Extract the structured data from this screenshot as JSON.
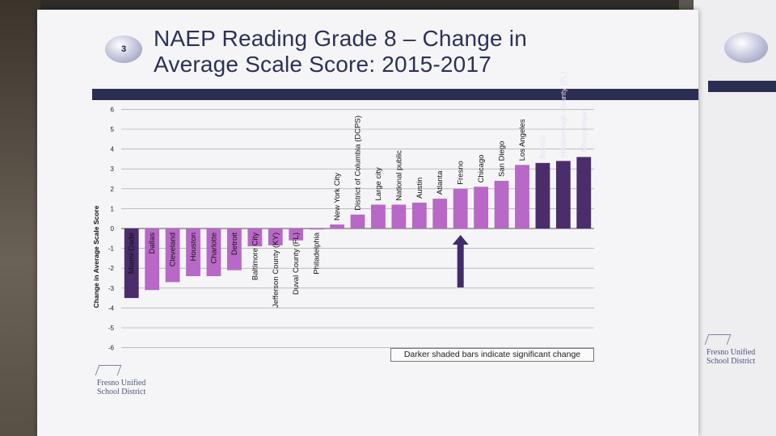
{
  "slide": {
    "badge": "3",
    "title_line1": "NAEP Reading Grade 8 – Change in",
    "title_line2": "Average Scale Score: 2015-2017",
    "note": "Darker shaded bars indicate significant change",
    "logo_line1": "Fresno Unified",
    "logo_line2": "School District"
  },
  "colors": {
    "dark": "#4b2d6b",
    "light": "#b868c6",
    "arrow": "#3f2c6a",
    "title": "#2c3158"
  },
  "chart_data": {
    "type": "bar",
    "ylabel": "Change in Average Scale Score",
    "ylim": [
      -6,
      6
    ],
    "yticks": [
      6,
      5,
      4,
      3,
      2,
      1,
      0,
      -1,
      -2,
      -3,
      -4,
      -5,
      -6
    ],
    "grid": true,
    "categories": [
      "Miami-Dade",
      "Dallas",
      "Cleveland",
      "Houston",
      "Charlotte",
      "Detroit",
      "Baltimore City",
      "Jefferson County (KY)",
      "Duval County (FL)",
      "Philadelphia",
      "New York City",
      "District of Columbia (DCPS)",
      "Large city",
      "National public",
      "Austin",
      "Atlanta",
      "Fresno",
      "Chicago",
      "San Diego",
      "Los Angeles",
      "Boston",
      "Hillsborough County (FL)",
      "Albuquerque"
    ],
    "values": [
      -3.5,
      -3.1,
      -2.7,
      -2.4,
      -2.4,
      -2.1,
      -0.9,
      -0.85,
      -0.6,
      -0.05,
      0.2,
      0.7,
      1.2,
      1.2,
      1.3,
      1.5,
      2.0,
      2.1,
      2.4,
      3.2,
      3.3,
      3.4,
      3.6
    ],
    "significant": [
      true,
      false,
      false,
      false,
      false,
      false,
      false,
      false,
      false,
      false,
      false,
      false,
      false,
      false,
      false,
      false,
      false,
      false,
      false,
      false,
      true,
      true,
      true
    ],
    "highlight": "Fresno"
  }
}
